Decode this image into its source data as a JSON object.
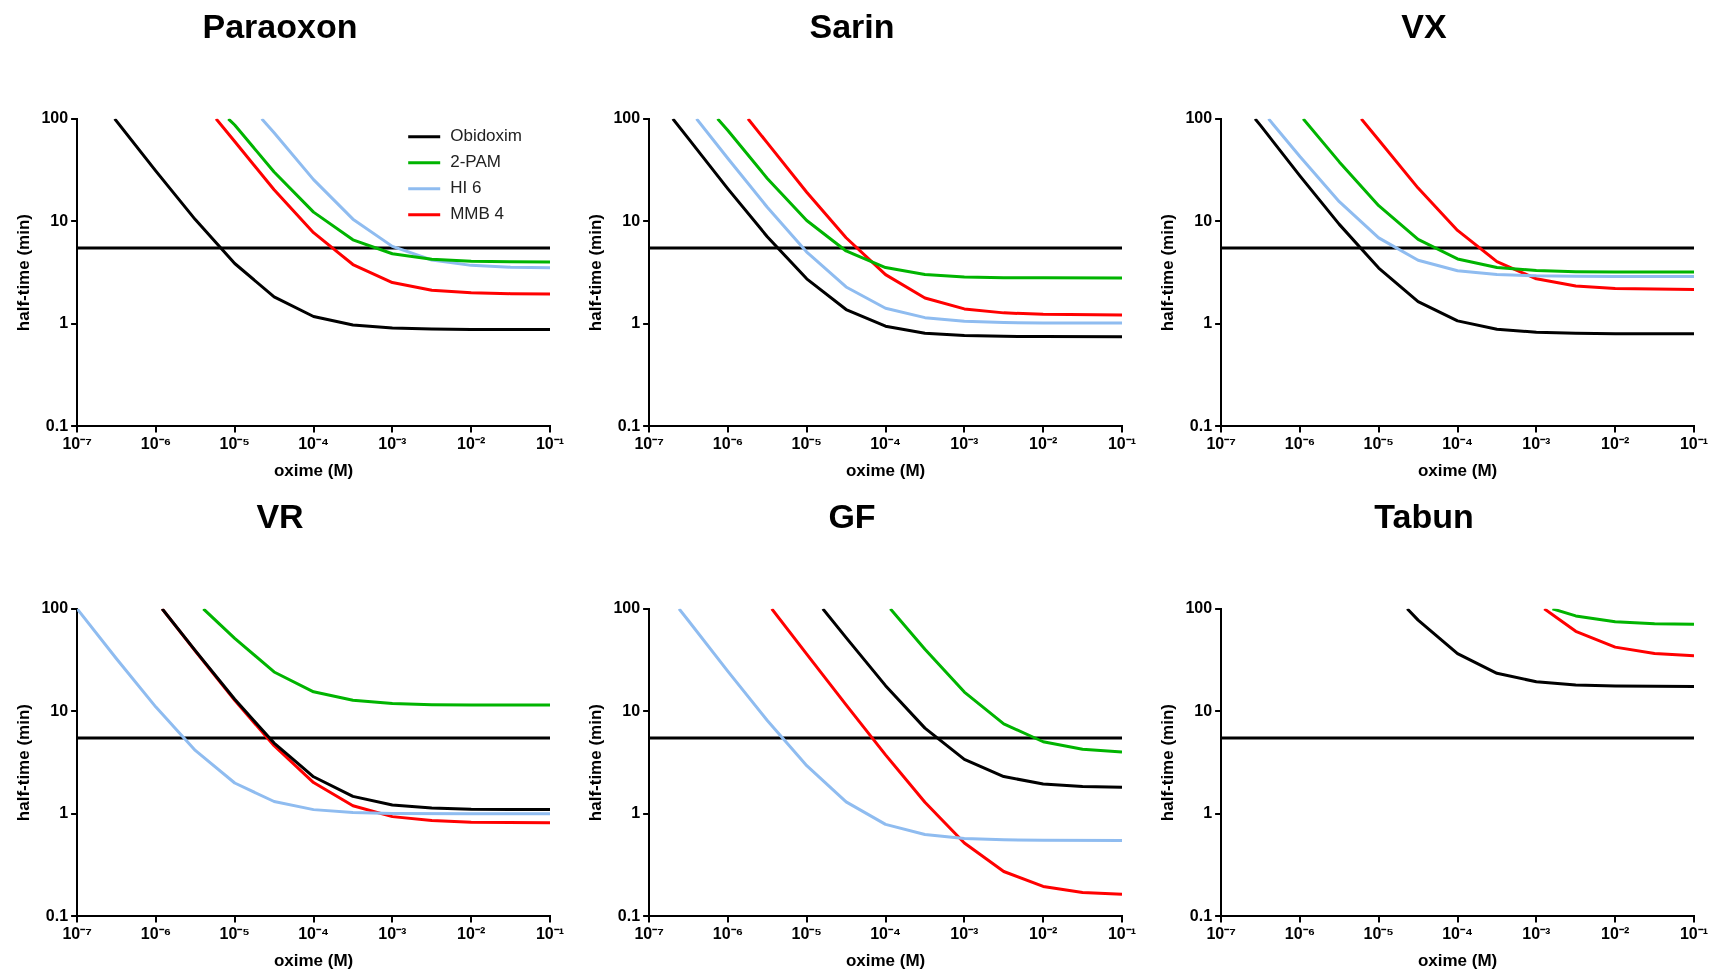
{
  "chart_data": [
    {
      "type": "line",
      "title": "Paraoxon",
      "xlabel": "oxime (M)",
      "ylabel": "half-time (min)",
      "log": "xy",
      "grid": false,
      "legend": "top right",
      "marker": "none",
      "line_style": "solid",
      "xlim": [
        1e-07,
        0.1
      ],
      "ylim": [
        0.1,
        100
      ],
      "xticks": [
        {
          "value": 1e-07,
          "label": "10⁻⁷"
        },
        {
          "value": 1e-06,
          "label": "10⁻⁶"
        },
        {
          "value": 1e-05,
          "label": "10⁻⁵"
        },
        {
          "value": 0.0001,
          "label": "10⁻⁴"
        },
        {
          "value": 0.001,
          "label": "10⁻³"
        },
        {
          "value": 0.01,
          "label": "10⁻²"
        },
        {
          "value": 0.1,
          "label": "10⁻¹"
        }
      ],
      "yticks": [
        0.1,
        1,
        10,
        100
      ],
      "ref_lines": [
        {
          "axis": "y",
          "value": 5.5,
          "color": "#000000"
        }
      ],
      "series": [
        {
          "name": "Obidoxim",
          "color": "#000000",
          "x": [
            3e-07,
            1e-06,
            3.16e-06,
            1e-05,
            3.16e-05,
            0.0001,
            0.000316,
            0.001,
            0.00316,
            0.01,
            0.0316,
            0.1
          ],
          "values": [
            100,
            30.9,
            10.4,
            3.88,
            1.83,
            1.18,
            0.975,
            0.91,
            0.89,
            0.88,
            0.88,
            0.88
          ]
        },
        {
          "name": "2-PAM",
          "color": "#00b400",
          "x": [
            8.3e-06,
            1e-05,
            3.16e-05,
            0.0001,
            0.000316,
            0.001,
            0.00316,
            0.01,
            0.0316,
            0.1
          ],
          "values": [
            100,
            87,
            30.3,
            12.3,
            6.6,
            4.83,
            4.26,
            4.08,
            4.03,
            4.01
          ]
        },
        {
          "name": "HI 6",
          "color": "#8fbcf0",
          "x": [
            2.2e-05,
            3.16e-05,
            0.0001,
            0.000316,
            0.001,
            0.00316,
            0.01,
            0.0316,
            0.1
          ],
          "values": [
            100,
            73,
            25.5,
            10.5,
            5.7,
            4.2,
            3.72,
            3.57,
            3.52
          ]
        },
        {
          "name": "MMB 4",
          "color": "#ff0000",
          "x": [
            5.8e-06,
            1e-05,
            3.16e-05,
            0.0001,
            0.000316,
            0.001,
            0.00316,
            0.01,
            0.0316,
            0.1
          ],
          "values": [
            100,
            60,
            20.3,
            7.75,
            3.79,
            2.53,
            2.13,
            2.01,
            1.97,
            1.96
          ]
        }
      ]
    },
    {
      "type": "line",
      "title": "Sarin",
      "xlabel": "oxime (M)",
      "ylabel": "half-time (min)",
      "log": "xy",
      "grid": false,
      "marker": "none",
      "line_style": "solid",
      "xlim": [
        1e-07,
        0.1
      ],
      "ylim": [
        0.1,
        100
      ],
      "xticks": [
        {
          "value": 1e-07,
          "label": "10⁻⁷"
        },
        {
          "value": 1e-06,
          "label": "10⁻⁶"
        },
        {
          "value": 1e-05,
          "label": "10⁻⁵"
        },
        {
          "value": 0.0001,
          "label": "10⁻⁴"
        },
        {
          "value": 0.001,
          "label": "10⁻³"
        },
        {
          "value": 0.01,
          "label": "10⁻²"
        },
        {
          "value": 0.1,
          "label": "10⁻¹"
        }
      ],
      "yticks": [
        0.1,
        1,
        10,
        100
      ],
      "ref_lines": [
        {
          "axis": "y",
          "value": 5.5,
          "color": "#000000"
        }
      ],
      "series": [
        {
          "color": "#000000",
          "x": [
            2e-07,
            3.16e-07,
            1e-06,
            3.16e-06,
            1e-05,
            3.16e-05,
            0.0001,
            0.000316,
            0.001,
            0.00316,
            0.01,
            0.1
          ],
          "values": [
            100,
            64,
            20.75,
            7.08,
            2.75,
            1.38,
            0.95,
            0.81,
            0.77,
            0.756,
            0.752,
            0.75
          ]
        },
        {
          "color": "#00b400",
          "x": [
            7.4e-07,
            1e-06,
            3.16e-06,
            1e-05,
            3.16e-05,
            0.0001,
            0.000316,
            0.001,
            0.00316,
            0.01,
            0.1
          ],
          "values": [
            100,
            76.8,
            26.2,
            10.2,
            5.14,
            3.54,
            3.03,
            2.87,
            2.82,
            2.81,
            2.8
          ]
        },
        {
          "color": "#8fbcf0",
          "x": [
            4e-07,
            1e-06,
            3.16e-06,
            1e-05,
            3.16e-05,
            0.0001,
            0.000316,
            0.001,
            0.00316,
            0.01,
            0.1
          ],
          "values": [
            100,
            41,
            13.7,
            5.02,
            2.29,
            1.42,
            1.15,
            1.06,
            1.03,
            1.02,
            1.02
          ]
        },
        {
          "color": "#ff0000",
          "x": [
            1.8e-06,
            3.16e-06,
            1e-05,
            3.16e-05,
            0.0001,
            0.000316,
            0.001,
            0.00316,
            0.01,
            0.1
          ],
          "values": [
            100,
            58.2,
            19.2,
            6.92,
            3.02,
            1.79,
            1.4,
            1.28,
            1.24,
            1.22
          ]
        }
      ]
    },
    {
      "type": "line",
      "title": "VX",
      "xlabel": "oxime (M)",
      "ylabel": "half-time (min)",
      "log": "xy",
      "grid": false,
      "marker": "none",
      "line_style": "solid",
      "xlim": [
        1e-07,
        0.1
      ],
      "ylim": [
        0.1,
        100
      ],
      "xticks": [
        {
          "value": 1e-07,
          "label": "10⁻⁷"
        },
        {
          "value": 1e-06,
          "label": "10⁻⁶"
        },
        {
          "value": 1e-05,
          "label": "10⁻⁵"
        },
        {
          "value": 0.0001,
          "label": "10⁻⁴"
        },
        {
          "value": 0.001,
          "label": "10⁻³"
        },
        {
          "value": 0.01,
          "label": "10⁻²"
        },
        {
          "value": 0.1,
          "label": "10⁻¹"
        }
      ],
      "yticks": [
        0.1,
        1,
        10,
        100
      ],
      "ref_lines": [
        {
          "axis": "y",
          "value": 5.5,
          "color": "#000000"
        }
      ],
      "series": [
        {
          "color": "#000000",
          "x": [
            2.7e-07,
            3.16e-07,
            1e-06,
            3.16e-06,
            1e-05,
            3.16e-05,
            0.0001,
            0.000316,
            0.001,
            0.00316,
            0.01,
            0.1
          ],
          "values": [
            100,
            86.2,
            27.8,
            9.34,
            3.5,
            1.65,
            1.07,
            0.885,
            0.83,
            0.81,
            0.8,
            0.8
          ]
        },
        {
          "color": "#00b400",
          "x": [
            1.1e-06,
            3.16e-06,
            1e-05,
            3.16e-05,
            0.0001,
            0.000316,
            0.001,
            0.00316,
            0.01,
            0.1
          ],
          "values": [
            100,
            38,
            14.2,
            6.68,
            4.3,
            3.55,
            3.31,
            3.23,
            3.21,
            3.2
          ]
        },
        {
          "color": "#8fbcf0",
          "x": [
            4e-07,
            1e-06,
            3.16e-06,
            1e-05,
            3.16e-05,
            0.0001,
            0.000316,
            0.001,
            0.00316,
            0.01,
            0.1
          ],
          "values": [
            100,
            42.9,
            15.56,
            6.9,
            4.17,
            3.3,
            3.03,
            2.94,
            2.91,
            2.9,
            2.9
          ]
        },
        {
          "color": "#ff0000",
          "x": [
            6e-06,
            1e-05,
            3.16e-05,
            0.0001,
            0.000316,
            0.001,
            0.00316,
            0.01,
            0.1
          ],
          "values": [
            100,
            62.2,
            21.1,
            8.15,
            4.05,
            2.75,
            2.34,
            2.21,
            2.16
          ]
        }
      ]
    },
    {
      "type": "line",
      "title": "VR",
      "xlabel": "oxime (M)",
      "ylabel": "half-time (min)",
      "log": "xy",
      "grid": false,
      "marker": "none",
      "line_style": "solid",
      "xlim": [
        1e-07,
        0.1
      ],
      "ylim": [
        0.1,
        100
      ],
      "xticks": [
        {
          "value": 1e-07,
          "label": "10⁻⁷"
        },
        {
          "value": 1e-06,
          "label": "10⁻⁶"
        },
        {
          "value": 1e-05,
          "label": "10⁻⁵"
        },
        {
          "value": 0.0001,
          "label": "10⁻⁴"
        },
        {
          "value": 0.001,
          "label": "10⁻³"
        },
        {
          "value": 0.01,
          "label": "10⁻²"
        },
        {
          "value": 0.1,
          "label": "10⁻¹"
        }
      ],
      "yticks": [
        0.1,
        1,
        10,
        100
      ],
      "ref_lines": [
        {
          "axis": "y",
          "value": 5.5,
          "color": "#000000"
        }
      ],
      "series": [
        {
          "color": "#000000",
          "x": [
            1.2e-06,
            3.16e-06,
            1e-05,
            3.16e-05,
            0.0001,
            0.000316,
            0.001,
            0.00316,
            0.01,
            0.1
          ],
          "values": [
            100,
            39.1,
            13.1,
            4.9,
            2.3,
            1.48,
            1.22,
            1.14,
            1.11,
            1.1
          ]
        },
        {
          "color": "#00b400",
          "x": [
            4e-06,
            1e-05,
            3.16e-05,
            0.0001,
            0.000316,
            0.001,
            0.00316,
            0.01,
            0.1
          ],
          "values": [
            100,
            51.5,
            24.2,
            15.5,
            12.8,
            11.9,
            11.6,
            11.5,
            11.5
          ]
        },
        {
          "color": "#8fbcf0",
          "x": [
            1e-07,
            3.16e-07,
            1e-06,
            3.16e-06,
            1e-05,
            3.16e-05,
            0.0001,
            0.000316,
            0.001,
            0.01,
            0.1
          ],
          "values": [
            100,
            32.6,
            11,
            4.16,
            2,
            1.32,
            1.1,
            1.03,
            1.01,
            1,
            1
          ]
        },
        {
          "color": "#ff0000",
          "x": [
            1.2e-06,
            3.16e-06,
            1e-05,
            3.16e-05,
            0.0001,
            0.000316,
            0.001,
            0.00316,
            0.01,
            0.1
          ],
          "values": [
            100,
            38.8,
            12.8,
            4.62,
            2.02,
            1.2,
            0.94,
            0.86,
            0.83,
            0.82
          ]
        }
      ]
    },
    {
      "type": "line",
      "title": "GF",
      "xlabel": "oxime (M)",
      "ylabel": "half-time (min)",
      "log": "xy",
      "grid": false,
      "marker": "none",
      "line_style": "solid",
      "xlim": [
        1e-07,
        0.1
      ],
      "ylim": [
        0.1,
        100
      ],
      "xticks": [
        {
          "value": 1e-07,
          "label": "10⁻⁷"
        },
        {
          "value": 1e-06,
          "label": "10⁻⁶"
        },
        {
          "value": 1e-05,
          "label": "10⁻⁵"
        },
        {
          "value": 0.0001,
          "label": "10⁻⁴"
        },
        {
          "value": 0.001,
          "label": "10⁻³"
        },
        {
          "value": 0.01,
          "label": "10⁻²"
        },
        {
          "value": 0.1,
          "label": "10⁻¹"
        }
      ],
      "yticks": [
        0.1,
        1,
        10,
        100
      ],
      "ref_lines": [
        {
          "axis": "y",
          "value": 5.5,
          "color": "#000000"
        }
      ],
      "series": [
        {
          "color": "#000000",
          "x": [
            1.6e-05,
            3.16e-05,
            0.0001,
            0.000316,
            0.001,
            0.00316,
            0.01,
            0.0316,
            0.1
          ],
          "values": [
            100,
            52.4,
            17.8,
            6.86,
            3.4,
            2.31,
            1.96,
            1.85,
            1.82
          ]
        },
        {
          "color": "#00b400",
          "x": [
            0.000115,
            0.000316,
            0.001,
            0.00316,
            0.01,
            0.0316,
            0.1
          ],
          "values": [
            100,
            40.3,
            15.4,
            7.54,
            5.05,
            4.26,
            4.02
          ]
        },
        {
          "color": "#8fbcf0",
          "x": [
            2.4e-07,
            3.16e-07,
            1e-06,
            3.16e-06,
            1e-05,
            3.16e-05,
            0.0001,
            0.000316,
            0.001,
            0.00316,
            0.01,
            0.1
          ],
          "values": [
            100,
            76.5,
            24.55,
            8.14,
            2.95,
            1.31,
            0.79,
            0.63,
            0.574,
            0.558,
            0.552,
            0.55
          ]
        },
        {
          "color": "#ff0000",
          "x": [
            3.6e-06,
            1e-05,
            3.16e-05,
            0.0001,
            0.000316,
            0.001,
            0.00316,
            0.01,
            0.0316,
            0.1
          ],
          "values": [
            100,
            36.2,
            11.55,
            3.76,
            1.3,
            0.52,
            0.274,
            0.196,
            0.171,
            0.164
          ]
        }
      ]
    },
    {
      "type": "line",
      "title": "Tabun",
      "xlabel": "oxime (M)",
      "ylabel": "half-time (min)",
      "log": "xy",
      "grid": false,
      "marker": "none",
      "line_style": "solid",
      "xlim": [
        1e-07,
        0.1
      ],
      "ylim": [
        0.1,
        100
      ],
      "xticks": [
        {
          "value": 1e-07,
          "label": "10⁻⁷"
        },
        {
          "value": 1e-06,
          "label": "10⁻⁶"
        },
        {
          "value": 1e-05,
          "label": "10⁻⁵"
        },
        {
          "value": 0.0001,
          "label": "10⁻⁴"
        },
        {
          "value": 0.001,
          "label": "10⁻³"
        },
        {
          "value": 0.01,
          "label": "10⁻²"
        },
        {
          "value": 0.1,
          "label": "10⁻¹"
        }
      ],
      "yticks": [
        0.1,
        1,
        10,
        100
      ],
      "ref_lines": [
        {
          "axis": "y",
          "value": 5.5,
          "color": "#000000"
        }
      ],
      "series": [
        {
          "color": "#000000",
          "x": [
            2.3e-05,
            3.16e-05,
            0.0001,
            0.000316,
            0.001,
            0.00316,
            0.01,
            0.1
          ],
          "values": [
            100,
            77.6,
            36.5,
            23.5,
            19.4,
            18.1,
            17.7,
            17.5
          ]
        },
        {
          "color": "#00b400",
          "x": [
            0.0016,
            0.00316,
            0.01,
            0.0316,
            0.1
          ],
          "values": [
            100,
            85.2,
            74.8,
            71.5,
            70.5
          ]
        },
        {
          "color": "#ff0000",
          "x": [
            0.00126,
            0.00316,
            0.01,
            0.0316,
            0.1
          ],
          "values": [
            100,
            60.3,
            42.3,
            36.6,
            34.8
          ]
        }
      ]
    }
  ]
}
